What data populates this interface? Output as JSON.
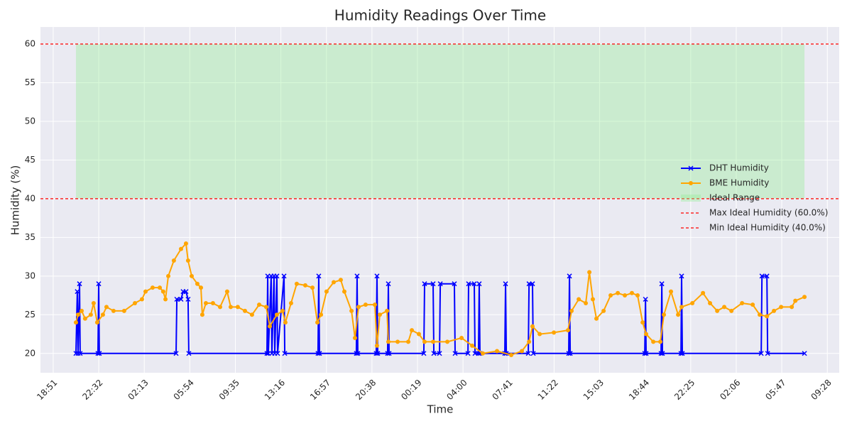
{
  "chart_data": {
    "type": "line",
    "title": "Humidity Readings Over Time",
    "x_label": "Time",
    "y_label": "Humidity (%)",
    "xlim": [
      17.82,
      82.43
    ],
    "ylim": [
      17.5,
      62.2
    ],
    "xticks": [
      {
        "value": 18.85,
        "label": "18:51"
      },
      {
        "value": 22.533,
        "label": "22:32"
      },
      {
        "value": 26.217,
        "label": "02:13"
      },
      {
        "value": 29.9,
        "label": "05:54"
      },
      {
        "value": 33.583,
        "label": "09:35"
      },
      {
        "value": 37.267,
        "label": "13:16"
      },
      {
        "value": 40.95,
        "label": "16:57"
      },
      {
        "value": 44.633,
        "label": "20:38"
      },
      {
        "value": 48.317,
        "label": "00:19"
      },
      {
        "value": 52.0,
        "label": "04:00"
      },
      {
        "value": 55.683,
        "label": "07:41"
      },
      {
        "value": 59.367,
        "label": "11:22"
      },
      {
        "value": 63.05,
        "label": "15:03"
      },
      {
        "value": 66.733,
        "label": "18:44"
      },
      {
        "value": 70.417,
        "label": "22:25"
      },
      {
        "value": 74.1,
        "label": "02:06"
      },
      {
        "value": 77.783,
        "label": "05:47"
      },
      {
        "value": 81.467,
        "label": "09:28"
      }
    ],
    "yticks": [
      20,
      25,
      30,
      35,
      40,
      45,
      50,
      55,
      60
    ],
    "grid": true,
    "legend": "center right",
    "range": {
      "name": "Ideal Range",
      "ymin": 40,
      "ymax": 60,
      "xmin": 20.69,
      "xmax": 79.62,
      "color": "#90ee90"
    },
    "hlines": [
      {
        "name": "Max Ideal Humidity (60.0%)",
        "value": 60,
        "color": "#ff0000"
      },
      {
        "name": "Min Ideal Humidity (40.0%)",
        "value": 40,
        "color": "#ff0000"
      }
    ],
    "series": [
      {
        "name": "DHT Humidity",
        "color": "#0000ff",
        "marker": "x",
        "x": [
          20.69,
          20.8,
          20.86,
          20.98,
          21.03,
          22.47,
          22.53,
          22.58,
          28.79,
          28.85,
          29.19,
          29.36,
          29.59,
          29.76,
          29.82,
          36.14,
          36.2,
          36.25,
          36.48,
          36.54,
          36.71,
          36.77,
          36.94,
          37.0,
          37.52,
          37.58,
          40.27,
          40.33,
          40.39,
          43.37,
          43.43,
          43.49,
          44.98,
          45.04,
          45.1,
          45.9,
          45.96,
          46.02,
          48.83,
          48.89,
          49.58,
          49.64,
          50.1,
          50.16,
          51.3,
          51.36,
          52.4,
          52.45,
          52.91,
          52.97,
          53.25,
          53.31,
          53.37,
          55.38,
          55.44,
          55.5,
          57.28,
          57.34,
          57.62,
          57.68,
          60.55,
          60.61,
          60.67,
          66.7,
          66.76,
          66.81,
          68.02,
          68.08,
          68.13,
          69.63,
          69.68,
          69.74,
          76.12,
          76.18,
          76.58,
          76.64,
          79.62
        ],
        "values": [
          20,
          28,
          20,
          29,
          20,
          20,
          29,
          20,
          20,
          27,
          27,
          28,
          28,
          27,
          20,
          20,
          30,
          20,
          30,
          20,
          30,
          20,
          30,
          20,
          30,
          20,
          20,
          30,
          20,
          20,
          30,
          20,
          20,
          30,
          20,
          20,
          29,
          20,
          20,
          29,
          29,
          20,
          20,
          29,
          29,
          20,
          20,
          29,
          29,
          20,
          20,
          29,
          20,
          20,
          29,
          20,
          20,
          29,
          29,
          20,
          20,
          30,
          20,
          20,
          27,
          20,
          20,
          29,
          20,
          20,
          30,
          20,
          20,
          30,
          30,
          20,
          20
        ]
      },
      {
        "name": "BME Humidity",
        "color": "#ffa500",
        "marker": "o",
        "x": [
          20.69,
          20.86,
          21.15,
          21.43,
          21.89,
          22.12,
          22.41,
          22.87,
          23.16,
          23.73,
          24.59,
          25.46,
          26.03,
          26.32,
          26.89,
          27.47,
          27.75,
          27.93,
          28.16,
          28.61,
          29.19,
          29.59,
          29.76,
          30.05,
          30.51,
          30.8,
          30.91,
          31.2,
          31.77,
          32.35,
          32.92,
          33.21,
          33.78,
          34.36,
          34.93,
          35.51,
          36.08,
          36.37,
          36.94,
          37.4,
          37.63,
          38.09,
          38.55,
          39.24,
          39.82,
          40.22,
          40.51,
          40.96,
          41.54,
          42.11,
          42.4,
          42.98,
          43.26,
          43.55,
          44.12,
          44.87,
          45.04,
          45.27,
          45.85,
          45.96,
          46.71,
          47.57,
          47.86,
          48.43,
          48.89,
          49.58,
          50.73,
          51.88,
          52.74,
          53.6,
          54.75,
          55.9,
          56.76,
          57.34,
          57.62,
          58.2,
          59.35,
          60.49,
          60.78,
          61.36,
          61.93,
          62.22,
          62.5,
          62.79,
          63.37,
          63.94,
          64.52,
          65.09,
          65.66,
          66.12,
          66.53,
          66.81,
          67.39,
          67.96,
          68.25,
          68.82,
          69.4,
          69.68,
          70.55,
          71.41,
          71.98,
          72.56,
          73.13,
          73.71,
          74.57,
          75.43,
          76.0,
          76.58,
          77.15,
          77.73,
          78.59,
          78.88,
          79.62
        ],
        "values": [
          24,
          25,
          25.5,
          24.5,
          25,
          26.5,
          24,
          25,
          26,
          25.5,
          25.5,
          26.5,
          27,
          28,
          28.5,
          28.5,
          28,
          27,
          30,
          32,
          33.5,
          34.2,
          32,
          30,
          29,
          28.5,
          25,
          26.5,
          26.5,
          26,
          28,
          26,
          26,
          25.5,
          25,
          26.3,
          26,
          23.5,
          25,
          25.5,
          24,
          26.5,
          29,
          28.8,
          28.5,
          24,
          25,
          28,
          29.2,
          29.5,
          28,
          25.5,
          22,
          26,
          26.3,
          26.3,
          21,
          25,
          25.5,
          21.5,
          21.5,
          21.5,
          23,
          22.5,
          21.5,
          21.5,
          21.5,
          22,
          21,
          20,
          20.3,
          19.8,
          20.3,
          21.5,
          23.5,
          22.5,
          22.7,
          23,
          25.5,
          27,
          26.5,
          30.5,
          27,
          24.5,
          25.5,
          27.5,
          27.8,
          27.5,
          27.8,
          27.5,
          24,
          22.5,
          21.5,
          21.5,
          25,
          28,
          25,
          26,
          26.5,
          27.8,
          26.5,
          25.5,
          26,
          25.5,
          26.5,
          26.3,
          25,
          24.8,
          25.5,
          26,
          26,
          26.8,
          27.3
        ]
      }
    ]
  }
}
